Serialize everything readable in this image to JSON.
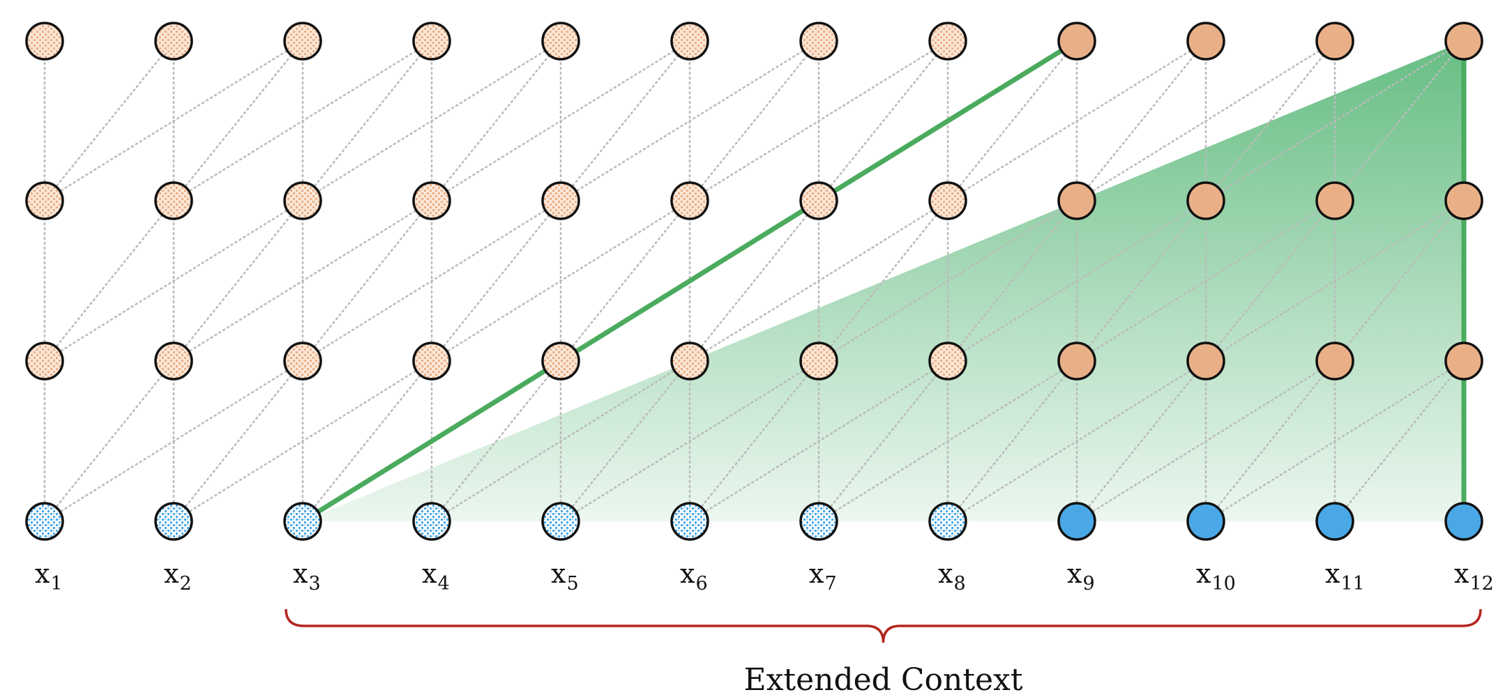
{
  "diagram": {
    "columns": 12,
    "layers": 4,
    "window": 3,
    "extended_from_column": 3,
    "highlight_apex_column": 12,
    "input_labels": [
      {
        "base": "x",
        "sub": "1"
      },
      {
        "base": "x",
        "sub": "2"
      },
      {
        "base": "x",
        "sub": "3"
      },
      {
        "base": "x",
        "sub": "4"
      },
      {
        "base": "x",
        "sub": "5"
      },
      {
        "base": "x",
        "sub": "6"
      },
      {
        "base": "x",
        "sub": "7"
      },
      {
        "base": "x",
        "sub": "8"
      },
      {
        "base": "x",
        "sub": "9"
      },
      {
        "base": "x",
        "sub": "10"
      },
      {
        "base": "x",
        "sub": "11"
      },
      {
        "base": "x",
        "sub": "12"
      }
    ],
    "brace_label": "Extended Context",
    "colors": {
      "input_node": "#4aa8e6",
      "hidden_node": "#e9b088",
      "node_stroke": "#111111",
      "highlight": "#4aab5e",
      "highlight_fill": "#6cc08a",
      "edge": "#bbbbbb",
      "brace": "#b3261e"
    }
  }
}
